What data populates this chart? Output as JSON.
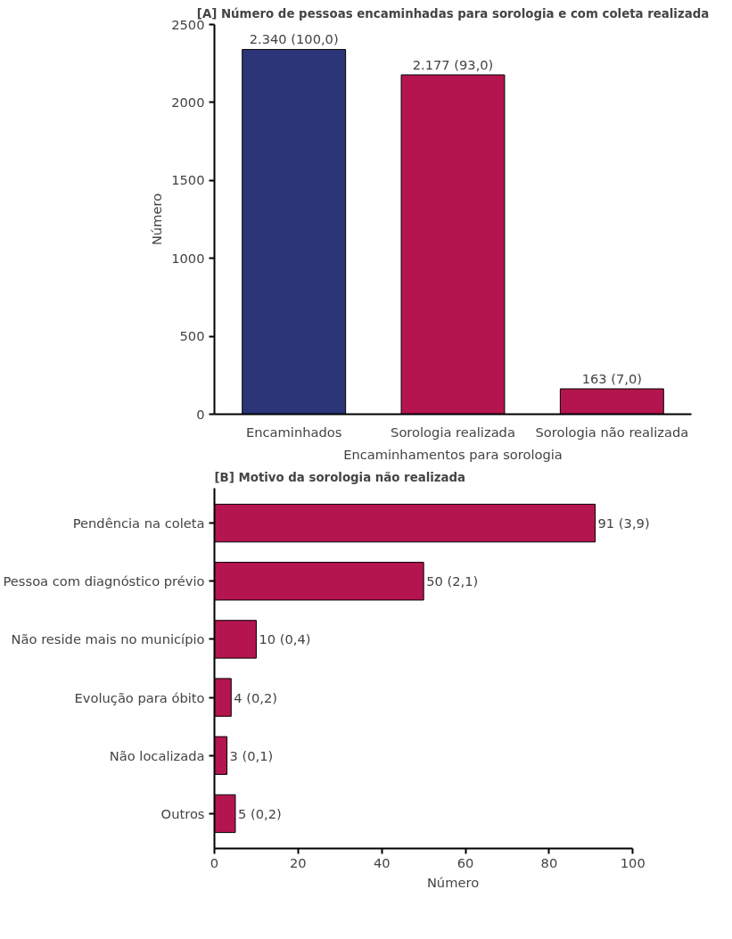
{
  "chart_data": [
    {
      "type": "bar",
      "title": "[A] Número de pessoas encaminhadas para sorologia e com coleta realizada",
      "xlabel": "Encaminhamentos para sorologia",
      "ylabel": "Número",
      "categories": [
        "Encaminhados",
        "Sorologia realizada",
        "Sorologia não realizada"
      ],
      "values": [
        2340,
        2177,
        163
      ],
      "colors": [
        "#2b3578",
        "#b5154f",
        "#b5154f"
      ],
      "value_labels": [
        "2.340 (100,0)",
        "2.177 (93,0)",
        "163 (7,0)"
      ],
      "ylim": [
        0,
        2500
      ],
      "yticks": [
        0,
        500,
        1000,
        1500,
        2000,
        2500
      ],
      "grid": false
    },
    {
      "type": "bar",
      "orientation": "horizontal",
      "title": "[B] Motivo da sorologia não realizada",
      "xlabel": "Número",
      "categories": [
        "Pendência na coleta",
        "Pessoa com diagnóstico prévio",
        "Não reside mais no município",
        "Evolução para óbito",
        "Não localizada",
        "Outros"
      ],
      "values": [
        91,
        50,
        10,
        4,
        3,
        5
      ],
      "color": "#b5154f",
      "value_labels": [
        "91 (3,9)",
        "50 (2,1)",
        "10 (0,4)",
        "4 (0,2)",
        "3 (0,1)",
        "5 (0,2)"
      ],
      "xlim": [
        0,
        100
      ],
      "xticks": [
        0,
        20,
        40,
        60,
        80,
        100
      ],
      "grid": false
    }
  ]
}
